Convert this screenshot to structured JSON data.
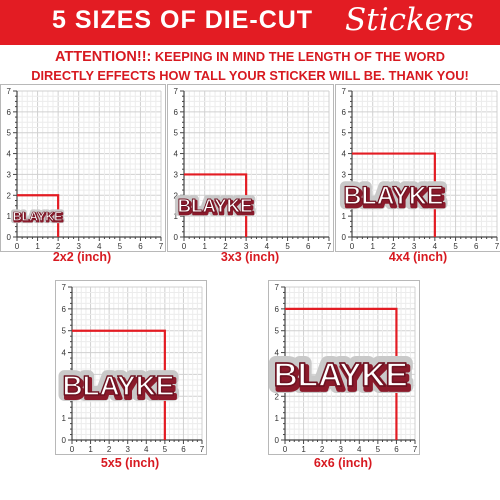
{
  "banner": {
    "title": "5 SIZES OF DIE-CUT",
    "script_word": "Stickers",
    "bg_color": "#e31c23",
    "text_color": "#ffffff"
  },
  "notice": {
    "label": "ATTENTION!!:",
    "line1_rest": " KEEPING IN MIND THE LENGTH OF THE WORD",
    "line2": "DIRECTLY EFFECTS HOW TALL YOUR STICKER WILL BE. THANK YOU!",
    "color": "#d71920"
  },
  "sticker_word": "BLAYKE",
  "axis_max": 7,
  "sizes": [
    {
      "label": "2x2 (inch)",
      "size": 2
    },
    {
      "label": "3x3 (inch)",
      "size": 3
    },
    {
      "label": "4x4 (inch)",
      "size": 4
    },
    {
      "label": "5x5 (inch)",
      "size": 5
    },
    {
      "label": "6x6 (inch)",
      "size": 6
    }
  ],
  "colors": {
    "accent": "#e31c23",
    "sticker_shadow": "#8b1a2b",
    "grid": "#dcdcdc"
  }
}
